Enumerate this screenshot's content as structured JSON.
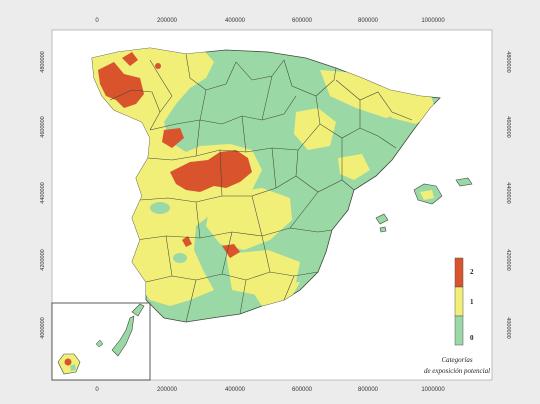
{
  "map": {
    "x_ticks": [
      "0",
      "200000",
      "400000",
      "600000",
      "800000",
      "1000000"
    ],
    "y_ticks_left": [
      "4800000",
      "4600000",
      "4400000",
      "4200000",
      "4000000"
    ],
    "y_ticks_right": [
      "4800000",
      "4600000",
      "4400000",
      "4200000",
      "4000000"
    ]
  },
  "legend": {
    "title_line1": "Categorías",
    "title_line2": "de exposición potencial",
    "categories": [
      {
        "label": "2",
        "color": "#d9532c"
      },
      {
        "label": "1",
        "color": "#f2ef79"
      },
      {
        "label": "0",
        "color": "#9ad9a6"
      }
    ]
  },
  "colors": {
    "background": "#ececec",
    "frame": "#ffffff",
    "sea": "#ffffff",
    "boundary": "#3f4a3a"
  }
}
